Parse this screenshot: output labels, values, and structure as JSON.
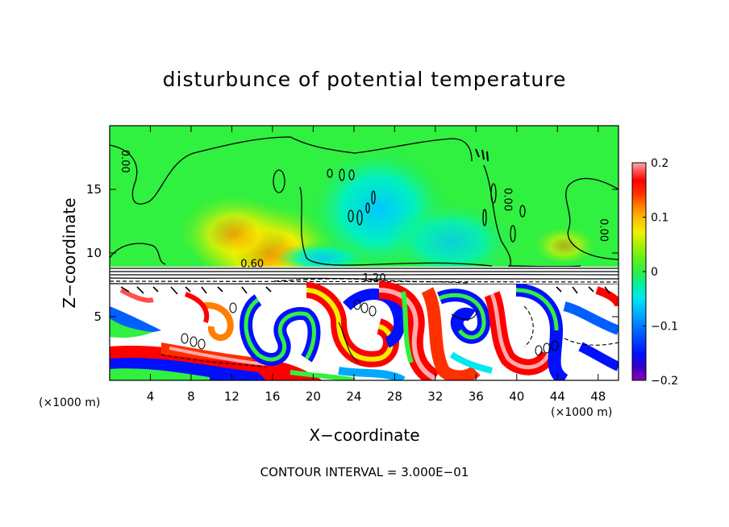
{
  "chart_data": {
    "type": "heatmap",
    "title": "disturbunce of potential temperature",
    "xlabel": "X−coordinate",
    "ylabel": "Z−coordinate",
    "x_unit_left": "(×1000 m)",
    "x_unit_right": "(×1000 m)",
    "footnote": "CONTOUR INTERVAL = 3.000E−01",
    "xlim": [
      0,
      50
    ],
    "ylim": [
      0,
      20
    ],
    "xticks": [
      4,
      8,
      12,
      16,
      20,
      24,
      28,
      32,
      36,
      40,
      44,
      48
    ],
    "yticks": [
      5,
      10,
      15
    ],
    "colorbar": {
      "range": [
        -0.2,
        0.2
      ],
      "tick_values": [
        0.2,
        0.1,
        0,
        -0.1,
        -0.2
      ],
      "tick_labels": [
        "0.2",
        "0.1",
        "0",
        "−0.1",
        "−0.2"
      ],
      "colors": [
        "#8a00b0",
        "#3a00c8",
        "#0010ff",
        "#0060ff",
        "#00a8ff",
        "#00e8f0",
        "#00f0a0",
        "#30f040",
        "#60f020",
        "#a8f000",
        "#f0f000",
        "#ffc000",
        "#ff8000",
        "#ff3000",
        "#ff0000",
        "#ff5050",
        "#ffaaaa"
      ]
    },
    "contour_labels": [
      {
        "text": "0.00",
        "x": 1.2,
        "z": 17.2,
        "rotate": 90
      },
      {
        "text": "0.00",
        "x": 38.8,
        "z": 14.2,
        "rotate": 90
      },
      {
        "text": "0.00",
        "x": 48.2,
        "z": 11.8,
        "rotate": 90
      },
      {
        "text": "0.60",
        "x": 14.0,
        "z": 8.9,
        "rotate": 0
      },
      {
        "text": "1.20",
        "x": 26.0,
        "z": 7.8,
        "rotate": 0
      }
    ]
  }
}
